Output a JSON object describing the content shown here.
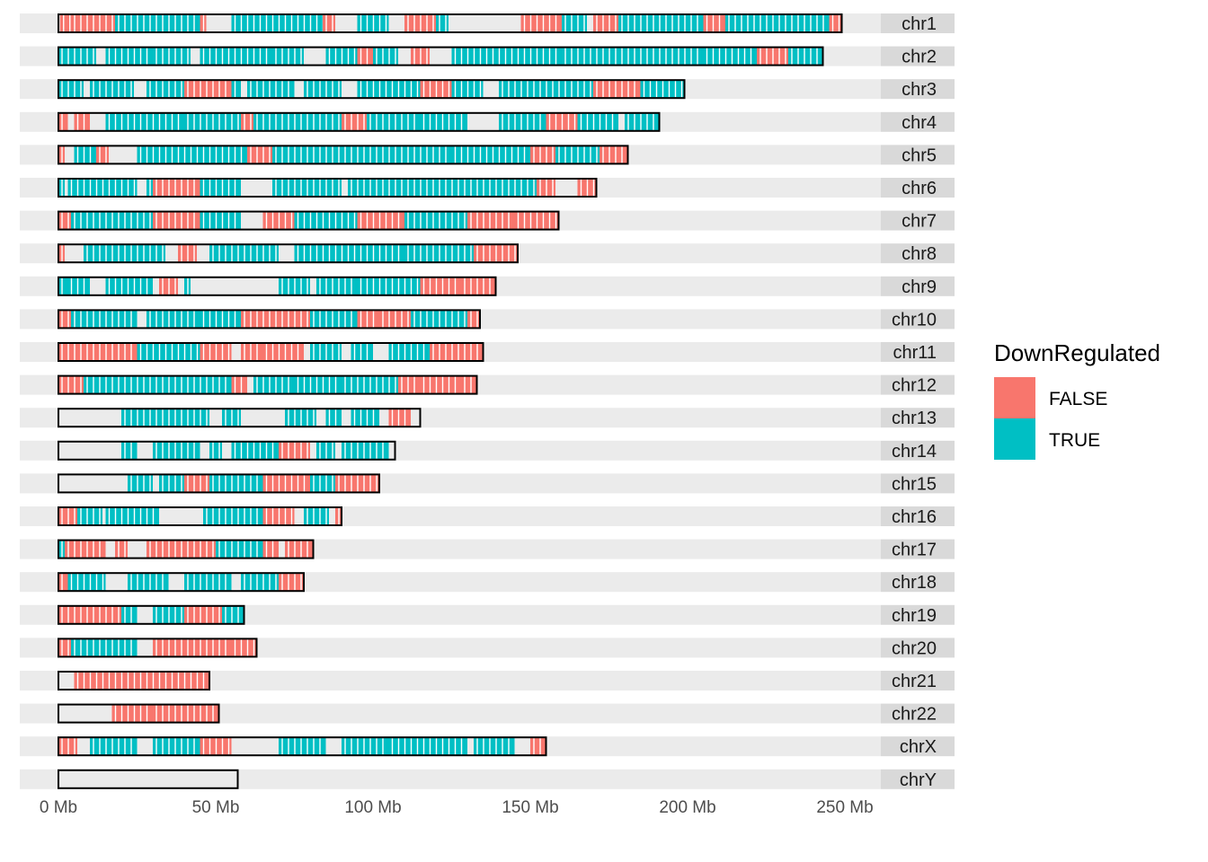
{
  "chart_data": {
    "type": "karyogram",
    "title": "",
    "xlabel": "",
    "ylabel": "",
    "x_unit": "Mb",
    "xlim": [
      0,
      262
    ],
    "x_ticks": [
      {
        "value": 0,
        "label": "0 Mb"
      },
      {
        "value": 50,
        "label": "50 Mb"
      },
      {
        "value": 100,
        "label": "100 Mb"
      },
      {
        "value": 150,
        "label": "150 Mb"
      },
      {
        "value": 200,
        "label": "200 Mb"
      },
      {
        "value": 250,
        "label": "250 Mb"
      }
    ],
    "legend": {
      "title": "DownRegulated",
      "position": "right",
      "entries": [
        {
          "label": "FALSE",
          "color": "#F8766D"
        },
        {
          "label": "TRUE",
          "color": "#00BFC4"
        }
      ]
    },
    "chromosomes": [
      {
        "name": "chr1",
        "length": 249
      },
      {
        "name": "chr2",
        "length": 243
      },
      {
        "name": "chr3",
        "length": 199
      },
      {
        "name": "chr4",
        "length": 191
      },
      {
        "name": "chr5",
        "length": 181
      },
      {
        "name": "chr6",
        "length": 171
      },
      {
        "name": "chr7",
        "length": 159
      },
      {
        "name": "chr8",
        "length": 146
      },
      {
        "name": "chr9",
        "length": 139
      },
      {
        "name": "chr10",
        "length": 134
      },
      {
        "name": "chr11",
        "length": 135
      },
      {
        "name": "chr12",
        "length": 133
      },
      {
        "name": "chr13",
        "length": 115
      },
      {
        "name": "chr14",
        "length": 107
      },
      {
        "name": "chr15",
        "length": 102
      },
      {
        "name": "chr16",
        "length": 90
      },
      {
        "name": "chr17",
        "length": 81
      },
      {
        "name": "chr18",
        "length": 78
      },
      {
        "name": "chr19",
        "length": 59
      },
      {
        "name": "chr20",
        "length": 63
      },
      {
        "name": "chr21",
        "length": 48
      },
      {
        "name": "chr22",
        "length": 51
      },
      {
        "name": "chrX",
        "length": 155
      },
      {
        "name": "chrY",
        "length": 57
      }
    ],
    "regions": {
      "chr1": [
        [
          0.5,
          4,
          "F"
        ],
        [
          4,
          18,
          "F"
        ],
        [
          18,
          45,
          "T"
        ],
        [
          45,
          47,
          "F"
        ],
        [
          55,
          85,
          "T"
        ],
        [
          84,
          88,
          "F"
        ],
        [
          95,
          105,
          "T"
        ],
        [
          110,
          120,
          "F"
        ],
        [
          120,
          124,
          "T"
        ],
        [
          147,
          160,
          "F"
        ],
        [
          160,
          168,
          "T"
        ],
        [
          170,
          178,
          "F"
        ],
        [
          178,
          205,
          "T"
        ],
        [
          205,
          212,
          "F"
        ],
        [
          212,
          228,
          "T"
        ],
        [
          228,
          245,
          "T"
        ],
        [
          245,
          249,
          "F"
        ]
      ],
      "chr2": [
        [
          0,
          6,
          "T"
        ],
        [
          6,
          12,
          "T"
        ],
        [
          15,
          30,
          "T"
        ],
        [
          30,
          42,
          "T"
        ],
        [
          45,
          68,
          "T"
        ],
        [
          68,
          78,
          "T"
        ],
        [
          85,
          95,
          "T"
        ],
        [
          95,
          100,
          "F"
        ],
        [
          100,
          108,
          "T"
        ],
        [
          112,
          118,
          "F"
        ],
        [
          125,
          160,
          "T"
        ],
        [
          160,
          205,
          "T"
        ],
        [
          205,
          222,
          "T"
        ],
        [
          222,
          232,
          "F"
        ],
        [
          232,
          243,
          "T"
        ]
      ],
      "chr3": [
        [
          0,
          8,
          "T"
        ],
        [
          10,
          24,
          "T"
        ],
        [
          28,
          40,
          "T"
        ],
        [
          40,
          46,
          "F"
        ],
        [
          46,
          55,
          "F"
        ],
        [
          55,
          58,
          "T"
        ],
        [
          60,
          75,
          "T"
        ],
        [
          78,
          90,
          "T"
        ],
        [
          95,
          115,
          "T"
        ],
        [
          115,
          125,
          "F"
        ],
        [
          125,
          135,
          "T"
        ],
        [
          140,
          170,
          "T"
        ],
        [
          170,
          185,
          "F"
        ],
        [
          185,
          199,
          "T"
        ]
      ],
      "chr4": [
        [
          0,
          3,
          "F"
        ],
        [
          5,
          10,
          "F"
        ],
        [
          15,
          40,
          "T"
        ],
        [
          40,
          58,
          "T"
        ],
        [
          58,
          62,
          "F"
        ],
        [
          62,
          90,
          "T"
        ],
        [
          90,
          98,
          "F"
        ],
        [
          98,
          115,
          "T"
        ],
        [
          115,
          130,
          "T"
        ],
        [
          140,
          155,
          "T"
        ],
        [
          155,
          165,
          "F"
        ],
        [
          165,
          178,
          "T"
        ],
        [
          180,
          191,
          "T"
        ]
      ],
      "chr5": [
        [
          0,
          2,
          "F"
        ],
        [
          5,
          12,
          "T"
        ],
        [
          12,
          16,
          "F"
        ],
        [
          25,
          60,
          "T"
        ],
        [
          60,
          68,
          "F"
        ],
        [
          68,
          80,
          "T"
        ],
        [
          80,
          110,
          "T"
        ],
        [
          110,
          125,
          "T"
        ],
        [
          125,
          150,
          "T"
        ],
        [
          150,
          158,
          "F"
        ],
        [
          158,
          172,
          "T"
        ],
        [
          172,
          181,
          "F"
        ]
      ],
      "chr6": [
        [
          0,
          2,
          "T"
        ],
        [
          3,
          25,
          "T"
        ],
        [
          28,
          30,
          "T"
        ],
        [
          30,
          45,
          "F"
        ],
        [
          45,
          58,
          "T"
        ],
        [
          68,
          90,
          "T"
        ],
        [
          92,
          110,
          "T"
        ],
        [
          110,
          140,
          "T"
        ],
        [
          140,
          152,
          "T"
        ],
        [
          152,
          158,
          "F"
        ],
        [
          165,
          171,
          "F"
        ]
      ],
      "chr7": [
        [
          0,
          4,
          "F"
        ],
        [
          4,
          30,
          "T"
        ],
        [
          30,
          45,
          "F"
        ],
        [
          45,
          58,
          "T"
        ],
        [
          65,
          75,
          "F"
        ],
        [
          75,
          95,
          "T"
        ],
        [
          95,
          110,
          "F"
        ],
        [
          110,
          130,
          "T"
        ],
        [
          130,
          145,
          "F"
        ],
        [
          145,
          159,
          "F"
        ]
      ],
      "chr8": [
        [
          0,
          2,
          "F"
        ],
        [
          8,
          34,
          "T"
        ],
        [
          38,
          44,
          "F"
        ],
        [
          48,
          70,
          "T"
        ],
        [
          75,
          110,
          "T"
        ],
        [
          110,
          132,
          "T"
        ],
        [
          132,
          140,
          "F"
        ],
        [
          140,
          146,
          "F"
        ]
      ],
      "chr9": [
        [
          0,
          3,
          "T"
        ],
        [
          3,
          10,
          "T"
        ],
        [
          15,
          30,
          "T"
        ],
        [
          32,
          38,
          "F"
        ],
        [
          40,
          42,
          "T"
        ],
        [
          70,
          80,
          "T"
        ],
        [
          82,
          95,
          "T"
        ],
        [
          95,
          115,
          "T"
        ],
        [
          115,
          128,
          "F"
        ],
        [
          128,
          139,
          "F"
        ]
      ],
      "chr10": [
        [
          0,
          4,
          "F"
        ],
        [
          4,
          18,
          "T"
        ],
        [
          18,
          25,
          "T"
        ],
        [
          28,
          45,
          "T"
        ],
        [
          45,
          58,
          "T"
        ],
        [
          58,
          80,
          "F"
        ],
        [
          80,
          95,
          "T"
        ],
        [
          95,
          102,
          "F"
        ],
        [
          102,
          112,
          "F"
        ],
        [
          112,
          130,
          "T"
        ],
        [
          130,
          134,
          "F"
        ]
      ],
      "chr11": [
        [
          0,
          10,
          "F"
        ],
        [
          10,
          25,
          "F"
        ],
        [
          25,
          45,
          "T"
        ],
        [
          45,
          55,
          "F"
        ],
        [
          58,
          65,
          "F"
        ],
        [
          65,
          78,
          "F"
        ],
        [
          80,
          90,
          "T"
        ],
        [
          93,
          100,
          "T"
        ],
        [
          105,
          118,
          "T"
        ],
        [
          118,
          130,
          "F"
        ],
        [
          130,
          135,
          "F"
        ]
      ],
      "chr12": [
        [
          0,
          8,
          "F"
        ],
        [
          8,
          18,
          "T"
        ],
        [
          18,
          30,
          "T"
        ],
        [
          30,
          42,
          "T"
        ],
        [
          42,
          55,
          "T"
        ],
        [
          55,
          60,
          "F"
        ],
        [
          62,
          75,
          "T"
        ],
        [
          75,
          90,
          "T"
        ],
        [
          90,
          108,
          "T"
        ],
        [
          108,
          115,
          "F"
        ],
        [
          115,
          128,
          "F"
        ],
        [
          128,
          133,
          "F"
        ]
      ],
      "chr13": [
        [
          20,
          48,
          "T"
        ],
        [
          52,
          58,
          "T"
        ],
        [
          72,
          82,
          "T"
        ],
        [
          85,
          90,
          "T"
        ],
        [
          93,
          102,
          "T"
        ],
        [
          105,
          112,
          "F"
        ]
      ],
      "chr14": [
        [
          20,
          25,
          "T"
        ],
        [
          30,
          45,
          "T"
        ],
        [
          48,
          52,
          "T"
        ],
        [
          55,
          70,
          "T"
        ],
        [
          70,
          80,
          "F"
        ],
        [
          82,
          88,
          "T"
        ],
        [
          90,
          105,
          "T"
        ]
      ],
      "chr15": [
        [
          22,
          30,
          "T"
        ],
        [
          32,
          40,
          "T"
        ],
        [
          40,
          48,
          "F"
        ],
        [
          48,
          65,
          "T"
        ],
        [
          65,
          80,
          "F"
        ],
        [
          80,
          88,
          "T"
        ],
        [
          88,
          98,
          "F"
        ],
        [
          98,
          102,
          "F"
        ]
      ],
      "chr16": [
        [
          0,
          6,
          "F"
        ],
        [
          6,
          14,
          "T"
        ],
        [
          15,
          32,
          "T"
        ],
        [
          46,
          52,
          "T"
        ],
        [
          52,
          65,
          "T"
        ],
        [
          65,
          75,
          "F"
        ],
        [
          78,
          86,
          "T"
        ],
        [
          88,
          90,
          "F"
        ]
      ],
      "chr17": [
        [
          0,
          2,
          "T"
        ],
        [
          2,
          15,
          "F"
        ],
        [
          18,
          22,
          "F"
        ],
        [
          28,
          50,
          "F"
        ],
        [
          50,
          65,
          "T"
        ],
        [
          65,
          70,
          "F"
        ],
        [
          72,
          81,
          "F"
        ]
      ],
      "chr18": [
        [
          0,
          3,
          "F"
        ],
        [
          3,
          15,
          "T"
        ],
        [
          22,
          35,
          "T"
        ],
        [
          40,
          55,
          "T"
        ],
        [
          58,
          70,
          "T"
        ],
        [
          70,
          78,
          "F"
        ]
      ],
      "chr19": [
        [
          0,
          10,
          "F"
        ],
        [
          10,
          20,
          "F"
        ],
        [
          20,
          25,
          "T"
        ],
        [
          30,
          40,
          "T"
        ],
        [
          40,
          52,
          "F"
        ],
        [
          52,
          59,
          "T"
        ]
      ],
      "chr20": [
        [
          0,
          4,
          "F"
        ],
        [
          4,
          18,
          "T"
        ],
        [
          18,
          25,
          "T"
        ],
        [
          30,
          40,
          "F"
        ],
        [
          40,
          55,
          "F"
        ],
        [
          55,
          63,
          "F"
        ]
      ],
      "chr21": [
        [
          5,
          48,
          "F"
        ]
      ],
      "chr22": [
        [
          17,
          30,
          "F"
        ],
        [
          30,
          40,
          "F"
        ],
        [
          40,
          51,
          "F"
        ]
      ],
      "chrX": [
        [
          0,
          6,
          "F"
        ],
        [
          10,
          25,
          "T"
        ],
        [
          30,
          45,
          "T"
        ],
        [
          45,
          55,
          "F"
        ],
        [
          70,
          85,
          "T"
        ],
        [
          90,
          105,
          "T"
        ],
        [
          105,
          130,
          "T"
        ],
        [
          132,
          145,
          "T"
        ],
        [
          150,
          155,
          "F"
        ]
      ],
      "chrY": []
    }
  }
}
